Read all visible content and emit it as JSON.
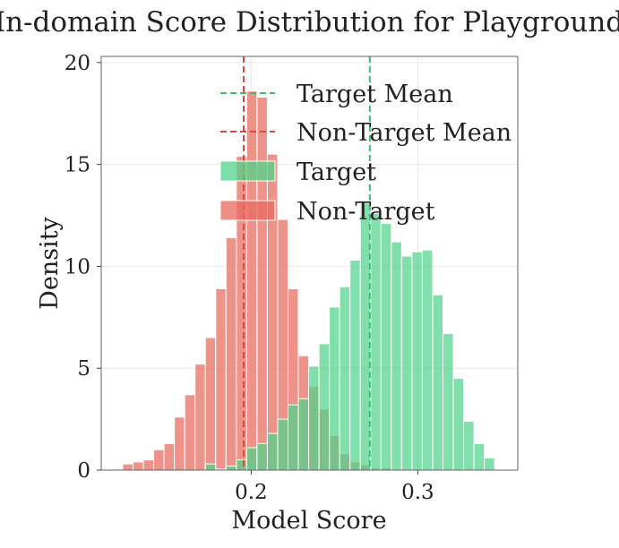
{
  "chart_data": {
    "type": "histogram",
    "title": "In-domain Score Distribution for Playground",
    "xlabel": "Model Score",
    "ylabel": "Density",
    "xlim": [
      0.11,
      0.36
    ],
    "ylim": [
      0,
      20.3
    ],
    "x_ticks": [
      0.2,
      0.3
    ],
    "y_ticks": [
      0,
      5,
      10,
      15,
      20
    ],
    "grid": true,
    "legend_position": "top-right",
    "colors": {
      "target": "#4fd38a",
      "non_target": "#e8695d",
      "target_mean_line": "#3fba75",
      "non_target_mean_line": "#d9483f"
    },
    "bin_edges": [
      0.1167,
      0.1229,
      0.1291,
      0.1353,
      0.1415,
      0.1477,
      0.1539,
      0.1601,
      0.1663,
      0.1725,
      0.1787,
      0.1849,
      0.1911,
      0.1973,
      0.2035,
      0.2097,
      0.2159,
      0.2221,
      0.2283,
      0.2345,
      0.2407,
      0.2469,
      0.2531,
      0.2593,
      0.2655,
      0.2717,
      0.2779,
      0.2841,
      0.2903,
      0.2965,
      0.3027,
      0.3089,
      0.3151,
      0.3213,
      0.3275,
      0.3337,
      0.3399,
      0.3461
    ],
    "series": [
      {
        "name": "Target",
        "type": "histogram",
        "values": [
          0,
          0,
          0,
          0,
          0,
          0,
          0,
          0,
          0,
          0.3,
          0.05,
          0.2,
          0.5,
          1.1,
          1.3,
          1.8,
          2.5,
          3.2,
          3.5,
          5.1,
          6.2,
          8.0,
          9.0,
          10.3,
          13.1,
          12.6,
          12.1,
          11.2,
          10.5,
          10.7,
          10.8,
          8.6,
          6.7,
          4.5,
          2.4,
          1.3,
          0.6,
          0.4
        ]
      },
      {
        "name": "Non-Target",
        "type": "histogram",
        "values": [
          0.05,
          0.3,
          0.4,
          0.5,
          1.0,
          1.3,
          2.6,
          3.7,
          5.2,
          6.5,
          8.9,
          11.4,
          15.4,
          18.6,
          18.3,
          15.5,
          12.3,
          8.9,
          5.6,
          4.1,
          3.0,
          1.7,
          0.8,
          0.4,
          0.25,
          0.1,
          0.1,
          0.05,
          0,
          0,
          0,
          0,
          0,
          0,
          0,
          0,
          0,
          0
        ]
      },
      {
        "name": "Target Mean",
        "type": "vline",
        "x": 0.2712
      },
      {
        "name": "Non-Target Mean",
        "type": "vline",
        "x": 0.1955
      }
    ],
    "legend": [
      {
        "label": "Target Mean",
        "kind": "dashed-line",
        "series": "target_mean"
      },
      {
        "label": "Non-Target Mean",
        "kind": "dashed-line",
        "series": "non_target_mean"
      },
      {
        "label": "Target",
        "kind": "patch",
        "series": "target"
      },
      {
        "label": "Non-Target",
        "kind": "patch",
        "series": "non_target"
      }
    ]
  }
}
